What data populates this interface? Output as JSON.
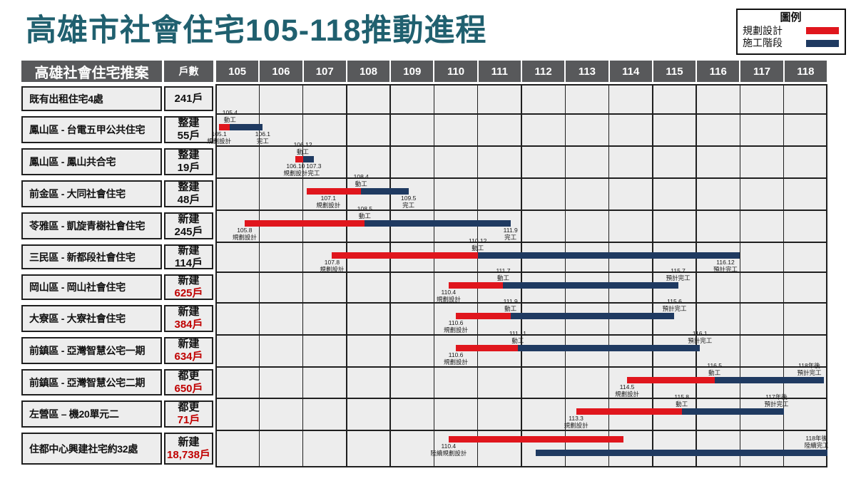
{
  "title": "高雄市社會住宅105-118推動進程",
  "legend": {
    "title": "圖例",
    "items": [
      {
        "label": "規劃設計",
        "color": "#E0161D"
      },
      {
        "label": "施工階段",
        "color": "#1F3A61"
      }
    ]
  },
  "colors": {
    "planning": "#E0161D",
    "construction": "#1F3A61",
    "title": "#20606F",
    "header_bg": "#58595B",
    "cell_bg": "#EDEDED",
    "count_red": "#C00000",
    "grid": "#1F1F1F"
  },
  "table": {
    "name_header": "高雄社會住宅推案",
    "units_header": "戶數",
    "years": [
      "105",
      "106",
      "107",
      "108",
      "109",
      "110",
      "111",
      "112",
      "113",
      "114",
      "115",
      "116",
      "117",
      "118"
    ],
    "rows": [
      {
        "name": "既有出租住宅4處",
        "type": "",
        "count": "241戶",
        "count_red": false,
        "bars": [],
        "labels": []
      },
      {
        "name": "鳳山區 - 台電五甲公共住宅",
        "type": "整建",
        "count": "55戶",
        "count_red": false,
        "bars": [
          {
            "phase": "planning",
            "from": [
              105,
              1
            ],
            "to": [
              105,
              4
            ],
            "lane": "single"
          },
          {
            "phase": "construction",
            "from": [
              105,
              4
            ],
            "to": [
              106,
              1
            ],
            "lane": "single"
          }
        ],
        "labels": [
          {
            "l1": "105.1",
            "l2": "規劃設計",
            "at": [
              105,
              1
            ],
            "side": "below",
            "lane": "single"
          },
          {
            "l1": "105.4",
            "l2": "動工",
            "at": [
              105,
              4
            ],
            "side": "above",
            "lane": "single"
          },
          {
            "l1": "106.1",
            "l2": "完工",
            "at": [
              106,
              1
            ],
            "side": "below",
            "lane": "single"
          }
        ]
      },
      {
        "name": "鳳山區 - 鳳山共合宅",
        "type": "整建",
        "count": "19戶",
        "count_red": false,
        "bars": [
          {
            "phase": "planning",
            "from": [
              106,
              10
            ],
            "to": [
              106,
              12
            ],
            "lane": "single"
          },
          {
            "phase": "construction",
            "from": [
              106,
              12
            ],
            "to": [
              107,
              3
            ],
            "lane": "single"
          }
        ],
        "labels": [
          {
            "l1": "106.10",
            "l2": "規劃設計",
            "at": [
              106,
              10
            ],
            "side": "below",
            "lane": "single"
          },
          {
            "l1": "106.12",
            "l2": "動工",
            "at": [
              106,
              12
            ],
            "side": "above",
            "lane": "single"
          },
          {
            "l1": "107.3",
            "l2": "完工",
            "at": [
              107,
              3
            ],
            "side": "below",
            "lane": "single"
          }
        ]
      },
      {
        "name": "前金區 - 大同社會住宅",
        "type": "整建",
        "count": "48戶",
        "count_red": false,
        "bars": [
          {
            "phase": "planning",
            "from": [
              107,
              1
            ],
            "to": [
              108,
              4
            ],
            "lane": "single"
          },
          {
            "phase": "construction",
            "from": [
              108,
              4
            ],
            "to": [
              109,
              5
            ],
            "lane": "single"
          }
        ],
        "labels": [
          {
            "l1": "107.1",
            "l2": "規劃設計",
            "at": [
              107,
              7
            ],
            "side": "below",
            "lane": "single"
          },
          {
            "l1": "108.4",
            "l2": "動工",
            "at": [
              108,
              4
            ],
            "side": "above",
            "lane": "single"
          },
          {
            "l1": "109.5",
            "l2": "完工",
            "at": [
              109,
              5
            ],
            "side": "below",
            "lane": "single"
          }
        ]
      },
      {
        "name": "苓雅區 - 凱旋青樹社會住宅",
        "type": "新建",
        "count": "245戶",
        "count_red": false,
        "bars": [
          {
            "phase": "planning",
            "from": [
              105,
              8
            ],
            "to": [
              108,
              5
            ],
            "lane": "single"
          },
          {
            "phase": "construction",
            "from": [
              108,
              5
            ],
            "to": [
              111,
              9
            ],
            "lane": "single"
          }
        ],
        "labels": [
          {
            "l1": "105.8",
            "l2": "規劃設計",
            "at": [
              105,
              8
            ],
            "side": "below",
            "lane": "single"
          },
          {
            "l1": "108.5",
            "l2": "動工",
            "at": [
              108,
              5
            ],
            "side": "above",
            "lane": "single"
          },
          {
            "l1": "111.9",
            "l2": "完工",
            "at": [
              111,
              9
            ],
            "side": "below",
            "lane": "single"
          }
        ]
      },
      {
        "name": "三民區 - 新都段社會住宅",
        "type": "新建",
        "count": "114戶",
        "count_red": false,
        "bars": [
          {
            "phase": "planning",
            "from": [
              107,
              8
            ],
            "to": [
              110,
              12
            ],
            "lane": "single"
          },
          {
            "phase": "construction",
            "from": [
              110,
              12
            ],
            "to": [
              116,
              12
            ],
            "lane": "single"
          }
        ],
        "labels": [
          {
            "l1": "107.8",
            "l2": "規劃設計",
            "at": [
              107,
              8
            ],
            "side": "below",
            "lane": "single"
          },
          {
            "l1": "110.12",
            "l2": "動工",
            "at": [
              110,
              12
            ],
            "side": "above",
            "lane": "single"
          },
          {
            "l1": "116.12",
            "l2": "預計完工",
            "at": [
              116,
              8
            ],
            "side": "below",
            "lane": "single"
          }
        ]
      },
      {
        "name": "岡山區 - 岡山社會住宅",
        "type": "新建",
        "count": "625戶",
        "count_red": true,
        "bars": [
          {
            "phase": "planning",
            "from": [
              110,
              4
            ],
            "to": [
              111,
              7
            ],
            "lane": "single"
          },
          {
            "phase": "construction",
            "from": [
              111,
              7
            ],
            "to": [
              115,
              7
            ],
            "lane": "single"
          }
        ],
        "labels": [
          {
            "l1": "110.4",
            "l2": "規劃設計",
            "at": [
              110,
              4
            ],
            "side": "below",
            "lane": "single"
          },
          {
            "l1": "111.7",
            "l2": "動工",
            "at": [
              111,
              7
            ],
            "side": "above",
            "lane": "single"
          },
          {
            "l1": "115.7",
            "l2": "預計完工",
            "at": [
              115,
              7
            ],
            "side": "above",
            "lane": "single"
          }
        ]
      },
      {
        "name": "大寮區 - 大寮社會住宅",
        "type": "新建",
        "count": "384戶",
        "count_red": true,
        "bars": [
          {
            "phase": "planning",
            "from": [
              110,
              6
            ],
            "to": [
              111,
              9
            ],
            "lane": "single"
          },
          {
            "phase": "construction",
            "from": [
              111,
              9
            ],
            "to": [
              115,
              6
            ],
            "lane": "single"
          }
        ],
        "labels": [
          {
            "l1": "110.6",
            "l2": "規劃設計",
            "at": [
              110,
              6
            ],
            "side": "below",
            "lane": "single"
          },
          {
            "l1": "111.9",
            "l2": "動工",
            "at": [
              111,
              9
            ],
            "side": "above",
            "lane": "single"
          },
          {
            "l1": "115.6",
            "l2": "預計完工",
            "at": [
              115,
              6
            ],
            "side": "above",
            "lane": "single"
          }
        ]
      },
      {
        "name": "前鎮區 - 亞灣智慧公宅一期",
        "type": "新建",
        "count": "634戶",
        "count_red": true,
        "bars": [
          {
            "phase": "planning",
            "from": [
              110,
              6
            ],
            "to": [
              111,
              11
            ],
            "lane": "single"
          },
          {
            "phase": "construction",
            "from": [
              111,
              11
            ],
            "to": [
              116,
              1
            ],
            "lane": "single"
          }
        ],
        "labels": [
          {
            "l1": "110.6",
            "l2": "規劃設計",
            "at": [
              110,
              6
            ],
            "side": "below",
            "lane": "single"
          },
          {
            "l1": "111.11",
            "l2": "動工",
            "at": [
              111,
              11
            ],
            "side": "above",
            "lane": "single"
          },
          {
            "l1": "116.1",
            "l2": "預計完工",
            "at": [
              116,
              1
            ],
            "side": "above",
            "lane": "single"
          }
        ]
      },
      {
        "name": "前鎮區 - 亞灣智慧公宅二期",
        "type": "都更",
        "count": "650戶",
        "count_red": true,
        "bars": [
          {
            "phase": "planning",
            "from": [
              114,
              5
            ],
            "to": [
              116,
              5
            ],
            "lane": "single"
          },
          {
            "phase": "construction",
            "from": [
              116,
              5
            ],
            "to": [
              118,
              11
            ],
            "lane": "single"
          }
        ],
        "labels": [
          {
            "l1": "114.5",
            "l2": "規劃設計",
            "at": [
              114,
              5
            ],
            "side": "below",
            "lane": "single"
          },
          {
            "l1": "116.5",
            "l2": "動工",
            "at": [
              116,
              5
            ],
            "side": "above",
            "lane": "single"
          },
          {
            "l1": "118年後",
            "l2": "預計完工",
            "at": [
              118,
              7
            ],
            "side": "above",
            "lane": "single"
          }
        ]
      },
      {
        "name": "左營區 – 機20單元二",
        "type": "都更",
        "count": "71戶",
        "count_red": true,
        "bars": [
          {
            "phase": "planning",
            "from": [
              113,
              3
            ],
            "to": [
              115,
              8
            ],
            "lane": "single"
          },
          {
            "phase": "construction",
            "from": [
              115,
              8
            ],
            "to": [
              117,
              12
            ],
            "lane": "single"
          }
        ],
        "labels": [
          {
            "l1": "113.3",
            "l2": "規劃設計",
            "at": [
              113,
              3
            ],
            "side": "below",
            "lane": "single"
          },
          {
            "l1": "115.8",
            "l2": "動工",
            "at": [
              115,
              8
            ],
            "side": "above",
            "lane": "single"
          },
          {
            "l1": "117年後",
            "l2": "預計完工",
            "at": [
              117,
              10
            ],
            "side": "above",
            "lane": "single"
          }
        ]
      },
      {
        "name": "住都中心興建社宅約32處",
        "type": "新建",
        "count": "18,738戶",
        "count_red": true,
        "bars": [
          {
            "phase": "planning",
            "from": [
              110,
              4
            ],
            "to": [
              114,
              4
            ],
            "lane": "upper"
          },
          {
            "phase": "construction",
            "from": [
              112,
              4
            ],
            "to": [
              118,
              12
            ],
            "lane": "lower"
          }
        ],
        "labels": [
          {
            "l1": "110.4",
            "l2": "陸續規劃設計",
            "at": [
              110,
              4
            ],
            "side": "below",
            "lane": "upper"
          },
          {
            "l1": "118年後",
            "l2": "陸續完工",
            "at": [
              118,
              9
            ],
            "side": "above",
            "lane": "lower"
          }
        ]
      }
    ]
  },
  "chart_data": {
    "type": "gantt",
    "title": "高雄市社會住宅105-118推動進程",
    "x_axis_years": [
      "105",
      "106",
      "107",
      "108",
      "109",
      "110",
      "111",
      "112",
      "113",
      "114",
      "115",
      "116",
      "117",
      "118"
    ],
    "legend": {
      "規劃設計": "#E0161D",
      "施工階段": "#1F3A61"
    },
    "projects": [
      {
        "name": "既有出租住宅4處",
        "units": "241戶"
      },
      {
        "name": "鳳山區 - 台電五甲公共住宅",
        "units": "整建 55戶",
        "planning": [
          "105.1",
          "105.4"
        ],
        "construction": [
          "105.4",
          "106.1"
        ],
        "completion_label": "106.1 完工"
      },
      {
        "name": "鳳山區 - 鳳山共合宅",
        "units": "整建 19戶",
        "planning": [
          "106.10",
          "106.12"
        ],
        "construction": [
          "106.12",
          "107.3"
        ],
        "completion_label": "107.3 完工"
      },
      {
        "name": "前金區 - 大同社會住宅",
        "units": "整建 48戶",
        "planning": [
          "107.1",
          "108.4"
        ],
        "construction": [
          "108.4",
          "109.5"
        ],
        "completion_label": "109.5 完工"
      },
      {
        "name": "苓雅區 - 凱旋青樹社會住宅",
        "units": "新建 245戶",
        "planning": [
          "105.8",
          "108.5"
        ],
        "construction": [
          "108.5",
          "111.9"
        ],
        "completion_label": "111.9 完工"
      },
      {
        "name": "三民區 - 新都段社會住宅",
        "units": "新建 114戶",
        "planning": [
          "107.8",
          "110.12"
        ],
        "construction": [
          "110.12",
          "116.12"
        ],
        "completion_label": "116.12 預計完工"
      },
      {
        "name": "岡山區 - 岡山社會住宅",
        "units": "新建 625戶",
        "planning": [
          "110.4",
          "111.7"
        ],
        "construction": [
          "111.7",
          "115.7"
        ],
        "completion_label": "115.7 預計完工"
      },
      {
        "name": "大寮區 - 大寮社會住宅",
        "units": "新建 384戶",
        "planning": [
          "110.6",
          "111.9"
        ],
        "construction": [
          "111.9",
          "115.6"
        ],
        "completion_label": "115.6 預計完工"
      },
      {
        "name": "前鎮區 - 亞灣智慧公宅一期",
        "units": "新建 634戶",
        "planning": [
          "110.6",
          "111.11"
        ],
        "construction": [
          "111.11",
          "116.1"
        ],
        "completion_label": "116.1 預計完工"
      },
      {
        "name": "前鎮區 - 亞灣智慧公宅二期",
        "units": "都更 650戶",
        "planning": [
          "114.5",
          "116.5"
        ],
        "construction": [
          "116.5",
          "118+"
        ],
        "completion_label": "118年後 預計完工"
      },
      {
        "name": "左營區 – 機20單元二",
        "units": "都更 71戶",
        "planning": [
          "113.3",
          "115.8"
        ],
        "construction": [
          "115.8",
          "117+"
        ],
        "completion_label": "117年後 預計完工"
      },
      {
        "name": "住都中心興建社宅約32處",
        "units": "新建 18,738戶",
        "planning": [
          "110.4",
          "114.4"
        ],
        "construction": [
          "112.4",
          "118+"
        ],
        "planning_label": "110.4 陸續規劃設計",
        "completion_label": "118年後 陸續完工"
      }
    ]
  }
}
